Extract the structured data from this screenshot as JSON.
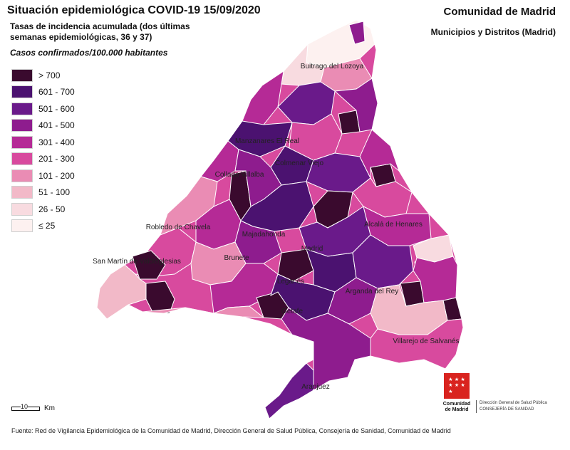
{
  "header": {
    "title": "Situación epidemiológica COVID-19  15/09/2020",
    "region": "Comunidad de Madrid",
    "level": "Municipios y Distritos (Madrid)",
    "subtitle": "Tasas de incidencia acumulada (dos últimas semanas epidemiológicas, 36 y 37)",
    "units": "Casos confirmados/100.000 habitantes"
  },
  "legend": [
    {
      "label": "> 700",
      "color": "#3a0a2e"
    },
    {
      "label": "601 - 700",
      "color": "#4b1270"
    },
    {
      "label": "501 - 600",
      "color": "#6a1a8a"
    },
    {
      "label": "401 - 500",
      "color": "#8e1c8e"
    },
    {
      "label": "301 - 400",
      "color": "#b52a96"
    },
    {
      "label": "201 - 300",
      "color": "#d84a9e"
    },
    {
      "label": "101 - 200",
      "color": "#ea8cb4"
    },
    {
      "label": "51 - 100",
      "color": "#f2b9c8"
    },
    {
      "label": "26 - 50",
      "color": "#f8dbe0"
    },
    {
      "label": "≤ 25",
      "color": "#fdf1f0"
    }
  ],
  "map_labels": [
    "Buitrago del Lozoya",
    "Manzanares El Real",
    "Colmenar Viejo",
    "Collado Villalba",
    "Robledo de Chavela",
    "Majadahonda",
    "Madrid",
    "San Martín de Valdeiglesias",
    "Brunete",
    "Leganés",
    "Getafe",
    "Alcalá de Henares",
    "Arganda del Rey",
    "Villarejo de Salvanés",
    "Aranjuez"
  ],
  "scale": {
    "value": "10",
    "unit": "Km"
  },
  "source": "Fuente: Red de Vigilancia Epidemiológica de la Comunidad de Madrid, Dirección General de Salud Pública, Consejería de Sanidad, Comunidad de Madrid",
  "logo": {
    "line1": "Comunidad",
    "line2": "de Madrid",
    "stars": "★"
  },
  "dept": {
    "line1": "Dirección General de Salud Pública",
    "line2": "CONSEJERÍA DE SANIDAD"
  }
}
